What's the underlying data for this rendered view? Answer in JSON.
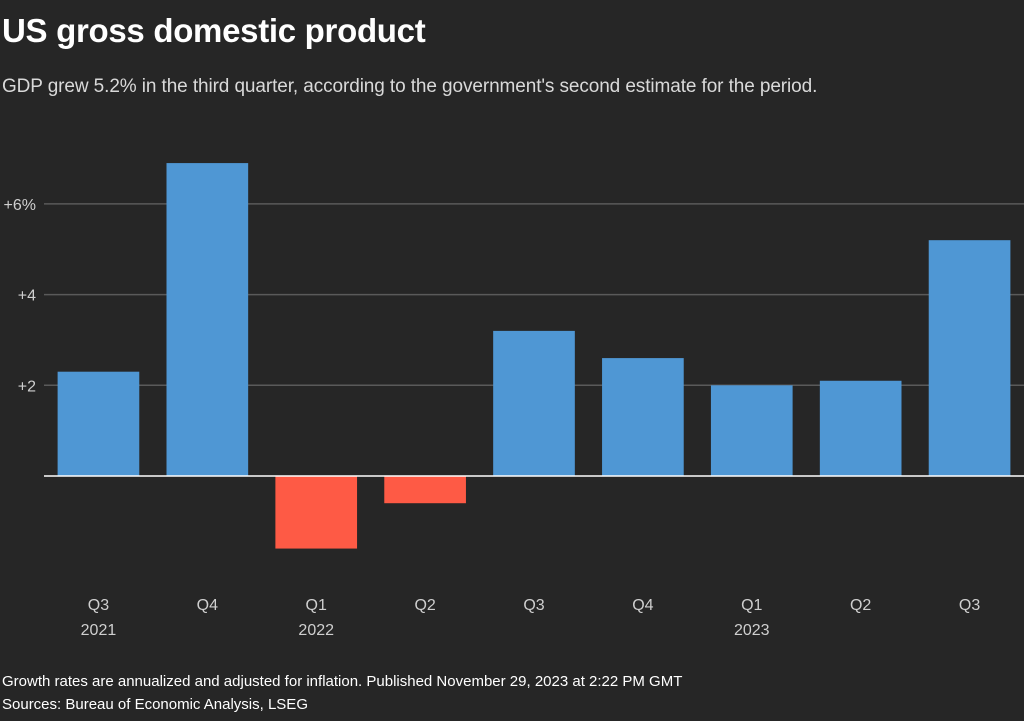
{
  "header": {
    "title": "US gross domestic product",
    "subtitle": "GDP grew 5.2% in the third quarter, according to the government's second estimate for the period."
  },
  "footer": {
    "note": "Growth rates are annualized and adjusted for inflation. Published November 29, 2023 at 2:22 PM GMT",
    "source": "Sources: Bureau of Economic Analysis, LSEG"
  },
  "colors": {
    "background": "#262626",
    "positive": "#4f97d4",
    "negative": "#fe5a45",
    "gridline": "#5a5a5a",
    "baseline": "#ffffff"
  },
  "chart_data": {
    "type": "bar",
    "title": "US gross domestic product",
    "subtitle": "GDP grew 5.2% in the third quarter, according to the government's second estimate for the period.",
    "xlabel": "",
    "ylabel": "",
    "categories": [
      "Q3 2021",
      "Q4 2021",
      "Q1 2022",
      "Q2 2022",
      "Q3 2022",
      "Q4 2022",
      "Q1 2023",
      "Q2 2023",
      "Q3 2023"
    ],
    "x_tick_labels": [
      {
        "quarter": "Q3",
        "year": "2021"
      },
      {
        "quarter": "Q4",
        "year": ""
      },
      {
        "quarter": "Q1",
        "year": "2022"
      },
      {
        "quarter": "Q2",
        "year": ""
      },
      {
        "quarter": "Q3",
        "year": ""
      },
      {
        "quarter": "Q4",
        "year": ""
      },
      {
        "quarter": "Q1",
        "year": "2023"
      },
      {
        "quarter": "Q2",
        "year": ""
      },
      {
        "quarter": "Q3",
        "year": ""
      }
    ],
    "values": [
      2.3,
      6.9,
      -1.6,
      -0.6,
      3.2,
      2.6,
      2.0,
      2.1,
      5.2
    ],
    "unit": "% annualized",
    "ylim": [
      -2.6,
      7.0
    ],
    "y_ticks": [
      {
        "value": 2,
        "label": "+2"
      },
      {
        "value": 4,
        "label": "+4"
      },
      {
        "value": 6,
        "label": "+6%"
      }
    ],
    "grid": true,
    "legend": "none"
  }
}
